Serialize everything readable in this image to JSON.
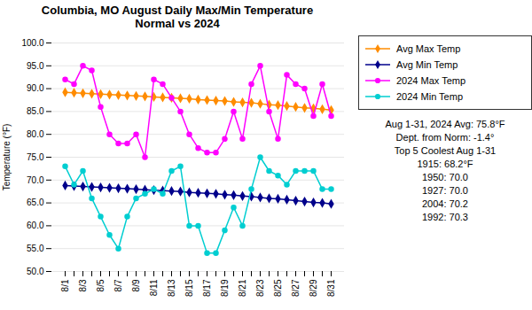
{
  "chart_data": {
    "type": "line",
    "title": "Columbia, MO August Daily Max/Min Temperature\nNormal vs 2024",
    "y_label": "Temperature (°F)",
    "categories": [
      "8/1",
      null,
      "8/3",
      null,
      "8/5",
      null,
      "8/7",
      null,
      "8/9",
      null,
      "8/11",
      null,
      "8/13",
      null,
      "8/15",
      null,
      "8/17",
      null,
      "8/19",
      null,
      "8/21",
      null,
      "8/23",
      null,
      "8/25",
      null,
      "8/27",
      null,
      "8/29",
      null,
      "8/31"
    ],
    "series": [
      {
        "name": "Avg Max Temp",
        "color": "#FF8C00",
        "marker": "diamond",
        "values": [
          89.2,
          89.1,
          89.0,
          88.9,
          88.8,
          88.7,
          88.6,
          88.5,
          88.4,
          88.3,
          88.2,
          88.1,
          88.0,
          87.9,
          87.8,
          87.6,
          87.5,
          87.4,
          87.3,
          87.1,
          87.0,
          86.9,
          86.7,
          86.5,
          86.4,
          86.2,
          86.0,
          85.8,
          85.7,
          85.5,
          85.3
        ]
      },
      {
        "name": "Avg Min Temp",
        "color": "#00008B",
        "marker": "diamond",
        "values": [
          68.8,
          68.7,
          68.6,
          68.5,
          68.4,
          68.3,
          68.2,
          68.1,
          68.0,
          67.9,
          67.8,
          67.7,
          67.6,
          67.5,
          67.3,
          67.2,
          67.1,
          67.0,
          66.8,
          66.7,
          66.5,
          66.4,
          66.2,
          66.0,
          65.9,
          65.7,
          65.5,
          65.3,
          65.1,
          65.0,
          64.8
        ]
      },
      {
        "name": "2024 Max Temp",
        "color": "#FF00FF",
        "marker": "circle",
        "values": [
          92,
          91,
          95,
          94,
          86,
          80,
          78,
          78,
          80,
          75,
          92,
          91,
          88,
          85,
          80,
          77,
          76,
          76,
          79,
          85,
          79,
          91,
          95,
          85,
          79,
          93,
          91,
          90,
          84,
          91,
          84
        ]
      },
      {
        "name": "2024 Min Temp",
        "color": "#00CED1",
        "marker": "circle",
        "values": [
          73,
          69,
          72,
          66,
          62,
          58,
          55,
          62,
          66,
          67,
          68,
          67,
          72,
          73,
          60,
          60,
          54,
          54,
          59,
          64,
          60,
          68,
          75,
          72,
          71,
          69,
          72,
          72,
          72,
          68,
          68
        ]
      }
    ],
    "ylim": [
      50.0,
      100.0
    ],
    "yticks": [
      {
        "value": 50.0,
        "label": "50.0"
      },
      {
        "value": 55.0,
        "label": "55.0"
      },
      {
        "value": 60.0,
        "label": "60.0"
      },
      {
        "value": 65.0,
        "label": "65.0"
      },
      {
        "value": 70.0,
        "label": "70.0"
      },
      {
        "value": 75.0,
        "label": "75.0"
      },
      {
        "value": 80.0,
        "label": "80.0"
      },
      {
        "value": 85.0,
        "label": "85.0"
      },
      {
        "value": 90.0,
        "label": "90.0"
      },
      {
        "value": 95.0,
        "label": "95.0"
      },
      {
        "value": 100.0,
        "label": "100.0"
      }
    ],
    "grid": true,
    "legend": "right",
    "annotations": [
      "Aug 1-31, 2024 Avg: 75.8°F",
      "Dept. from Norm: -1.4°",
      "Top 5 Coolest Aug 1-31",
      "1915: 68.2°F",
      "1950: 70.0",
      "1927: 70.0",
      "2004: 70.2",
      "1992: 70.3"
    ]
  }
}
